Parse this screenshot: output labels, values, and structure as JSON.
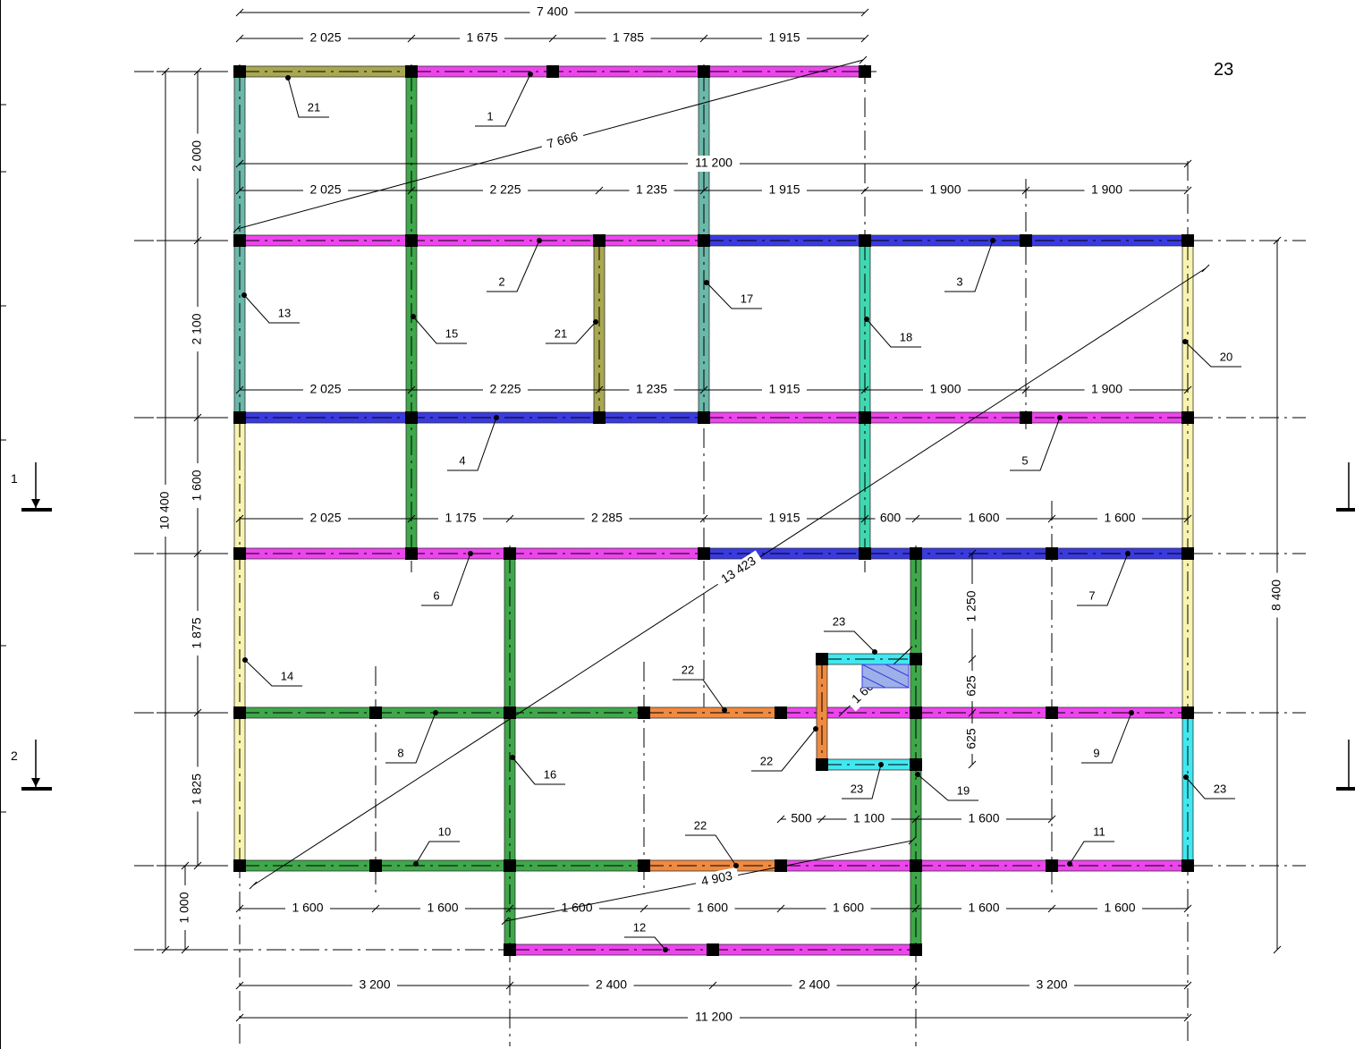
{
  "sheet_number": "23",
  "colors": {
    "magenta": "#ee44ee",
    "blue": "#3a3ae0",
    "green": "#3ea84a",
    "teal": "#6ab8a8",
    "aqua": "#3fd8b0",
    "olive": "#a8a850",
    "yellow": "#f8f4b0",
    "orange": "#f08a40",
    "cyan": "#40e8f0"
  },
  "section_marks": [
    "1",
    "2"
  ],
  "top_dims": {
    "total": "7 400",
    "parts": [
      "2 025",
      "1 675",
      "1 785",
      "1 915"
    ]
  },
  "row1_dims": {
    "total": "11 200",
    "parts": [
      "2 025",
      "2 225",
      "1 235",
      "1 915",
      "1 900",
      "1 900"
    ]
  },
  "row2_dims": {
    "parts": [
      "2 025",
      "2 225",
      "1 235",
      "1 915",
      "1 900",
      "1 900"
    ]
  },
  "row3_dims": {
    "parts": [
      "2 025",
      "1 175",
      "2 285",
      "1 915",
      "600",
      "1 600",
      "1 600"
    ]
  },
  "row_lower_dims": {
    "parts": [
      "500",
      "1 100",
      "1 600"
    ]
  },
  "row_bottom_dims": {
    "parts": [
      "1 600",
      "1 600",
      "1 600",
      "1 600",
      "1 600",
      "1 600",
      "1 600"
    ]
  },
  "base_dims": {
    "parts": [
      "3 200",
      "2 400",
      "2 400",
      "3 200"
    ],
    "total": "11 200"
  },
  "left_dims": {
    "total": "10 400",
    "parts": [
      "2 000",
      "2 100",
      "1 600",
      "1 875",
      "1 825",
      "1 000"
    ]
  },
  "right_dims": {
    "total": "8 400",
    "parts": [
      "1 250",
      "625",
      "625"
    ]
  },
  "diagonals": [
    "7 666",
    "13 423",
    "4 903",
    "1 665"
  ],
  "beam_tags": [
    "1",
    "2",
    "3",
    "4",
    "5",
    "6",
    "7",
    "8",
    "9",
    "10",
    "11",
    "12",
    "13",
    "14",
    "15",
    "16",
    "17",
    "18",
    "19",
    "20",
    "21",
    "21",
    "22",
    "22",
    "22",
    "23",
    "23",
    "23"
  ]
}
